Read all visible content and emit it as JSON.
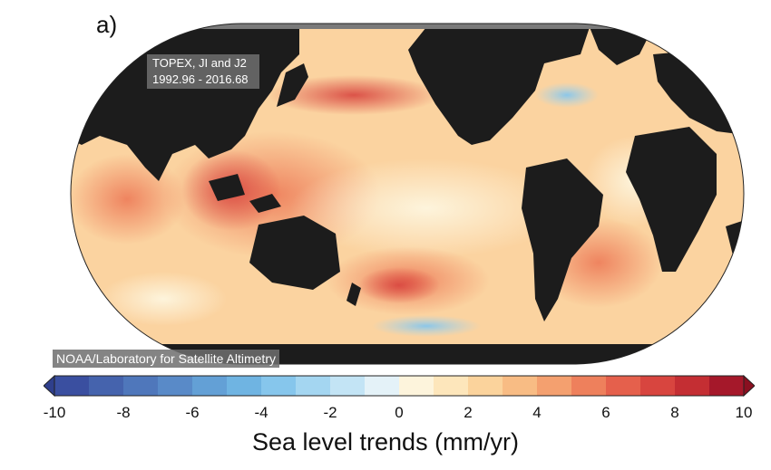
{
  "panel_label": "a)",
  "mission_badge": {
    "line1": "TOPEX, JI and J2",
    "line2": "1992.96 - 2016.68"
  },
  "source_badge": "NOAA/Laboratory for Satellite Altimetry",
  "colorbar": {
    "title": "Sea level trends (mm/yr)",
    "ticks": [
      "-10",
      "-8",
      "-6",
      "-4",
      "-2",
      "0",
      "2",
      "4",
      "6",
      "8",
      "10"
    ],
    "range": [
      -10,
      10
    ],
    "bins": [
      {
        "from": -10,
        "to": -9,
        "color": "#3a4fa0"
      },
      {
        "from": -9,
        "to": -8,
        "color": "#4563ad"
      },
      {
        "from": -8,
        "to": -7,
        "color": "#4f77bb"
      },
      {
        "from": -7,
        "to": -6,
        "color": "#598ac8"
      },
      {
        "from": -6,
        "to": -5,
        "color": "#63a0d6"
      },
      {
        "from": -5,
        "to": -4,
        "color": "#6fb4e2"
      },
      {
        "from": -4,
        "to": -3,
        "color": "#86c6ec"
      },
      {
        "from": -3,
        "to": -2,
        "color": "#a4d6f1"
      },
      {
        "from": -2,
        "to": -1,
        "color": "#c3e4f5"
      },
      {
        "from": -1,
        "to": 0,
        "color": "#e4f2f8"
      },
      {
        "from": 0,
        "to": 1,
        "color": "#fdf4dc"
      },
      {
        "from": 1,
        "to": 2,
        "color": "#fde6bb"
      },
      {
        "from": 2,
        "to": 3,
        "color": "#fbd39c"
      },
      {
        "from": 3,
        "to": 4,
        "color": "#f8bc84"
      },
      {
        "from": 4,
        "to": 5,
        "color": "#f4a06f"
      },
      {
        "from": 5,
        "to": 6,
        "color": "#ee805c"
      },
      {
        "from": 6,
        "to": 7,
        "color": "#e5604c"
      },
      {
        "from": 7,
        "to": 8,
        "color": "#d8453f"
      },
      {
        "from": 8,
        "to": 9,
        "color": "#c42e33"
      },
      {
        "from": 9,
        "to": 10,
        "color": "#a5182a"
      }
    ],
    "under_color": "#2f3f8c",
    "over_color": "#8a1020"
  },
  "map": {
    "projection": "Robinson, Pacific-centered",
    "ocean_base_color": "#fbd3a0",
    "land_color": "#1c1c1c",
    "ice_color": "#7a7a7a"
  }
}
